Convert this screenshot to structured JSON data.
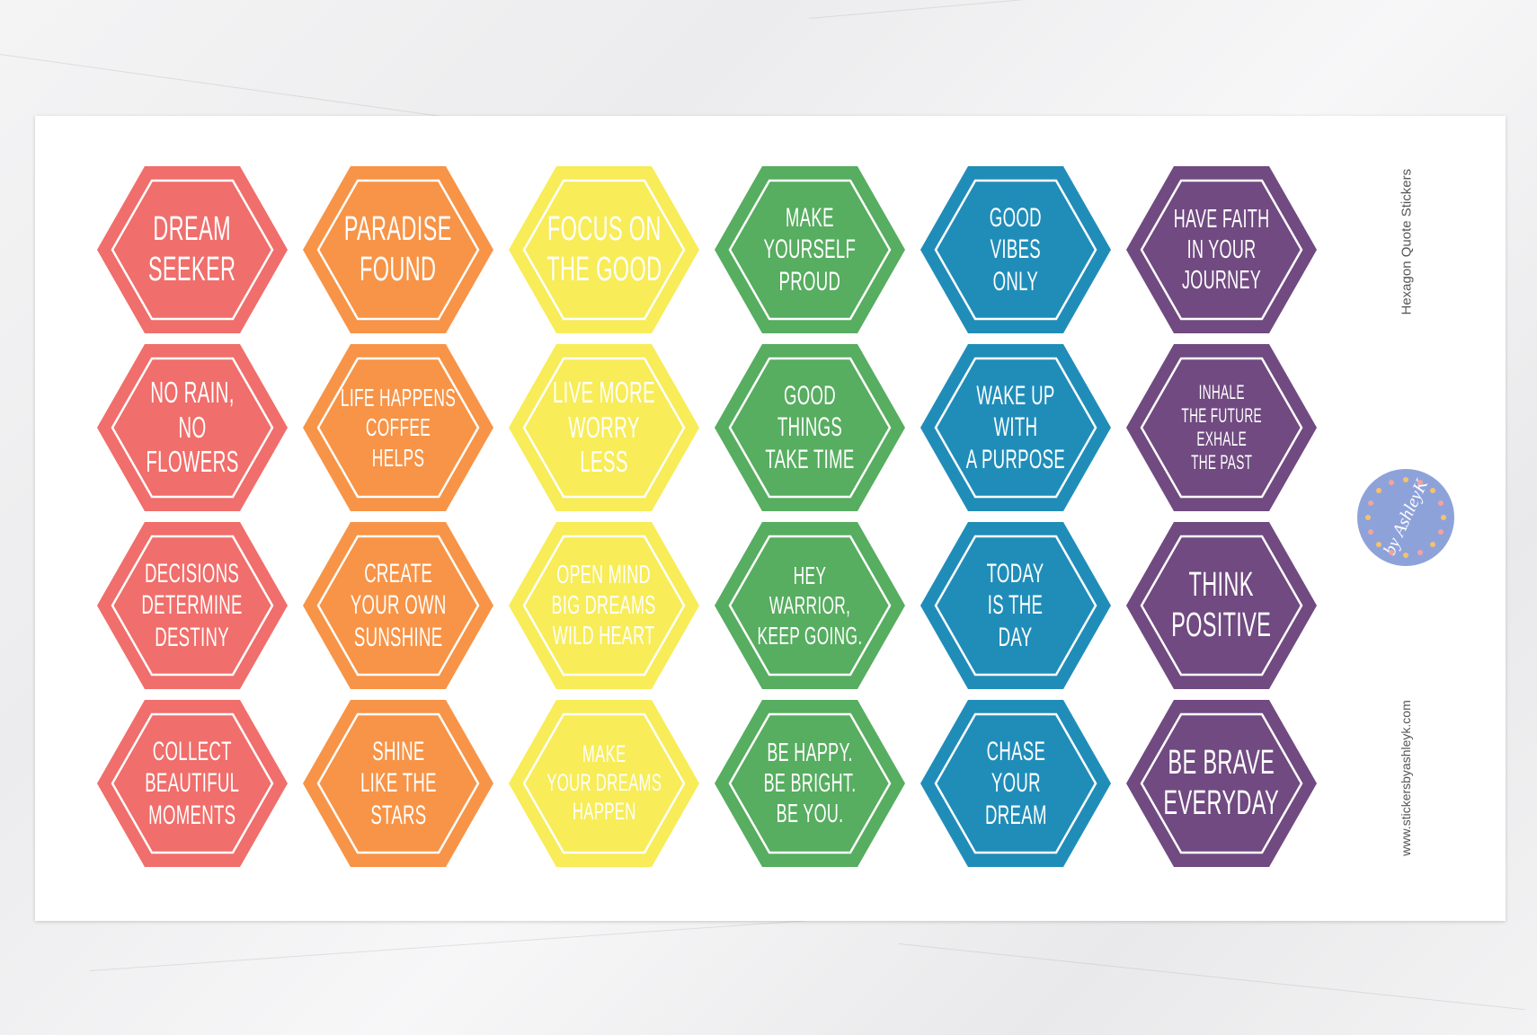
{
  "sheet": {
    "title": "Hexagon Quote Stickers",
    "website": "www.stickersbyashleyk.com",
    "logo_text": "by AshleyK"
  },
  "colors": [
    "#f06e6b",
    "#f79447",
    "#f8ec58",
    "#57ad60",
    "#208db9",
    "#704a80"
  ],
  "stickers": [
    [
      "DREAM\nSEEKER",
      "PARADISE\nFOUND",
      "FOCUS ON\nTHE GOOD",
      "MAKE\nYOURSELF\nPROUD",
      "GOOD\nVIBES\nONLY",
      "HAVE FAITH\nIN YOUR\nJOURNEY"
    ],
    [
      "NO RAIN,\nNO FLOWERS",
      "LIFE HAPPENS\nCOFFEE HELPS",
      "LIVE MORE\nWORRY LESS",
      "GOOD THINGS\nTAKE TIME",
      "WAKE UP\nWITH\nA PURPOSE",
      "INHALE\nTHE FUTURE\nEXHALE\nTHE PAST"
    ],
    [
      "DECISIONS\nDETERMINE\nDESTINY",
      "CREATE\nYOUR OWN\nSUNSHINE",
      "OPEN MIND\nBIG DREAMS\nWILD HEART",
      "HEY WARRIOR,\nKEEP GOING.",
      "TODAY\nIS THE\nDAY",
      "THINK\nPOSITIVE"
    ],
    [
      "COLLECT\nBEAUTIFUL\nMOMENTS",
      "SHINE\nLIKE THE\nSTARS",
      "MAKE\nYOUR DREAMS\nHAPPEN",
      "BE HAPPY.\nBE BRIGHT.\nBE YOU.",
      "CHASE\nYOUR\nDREAM",
      "BE BRAVE\nEVERYDAY"
    ]
  ]
}
